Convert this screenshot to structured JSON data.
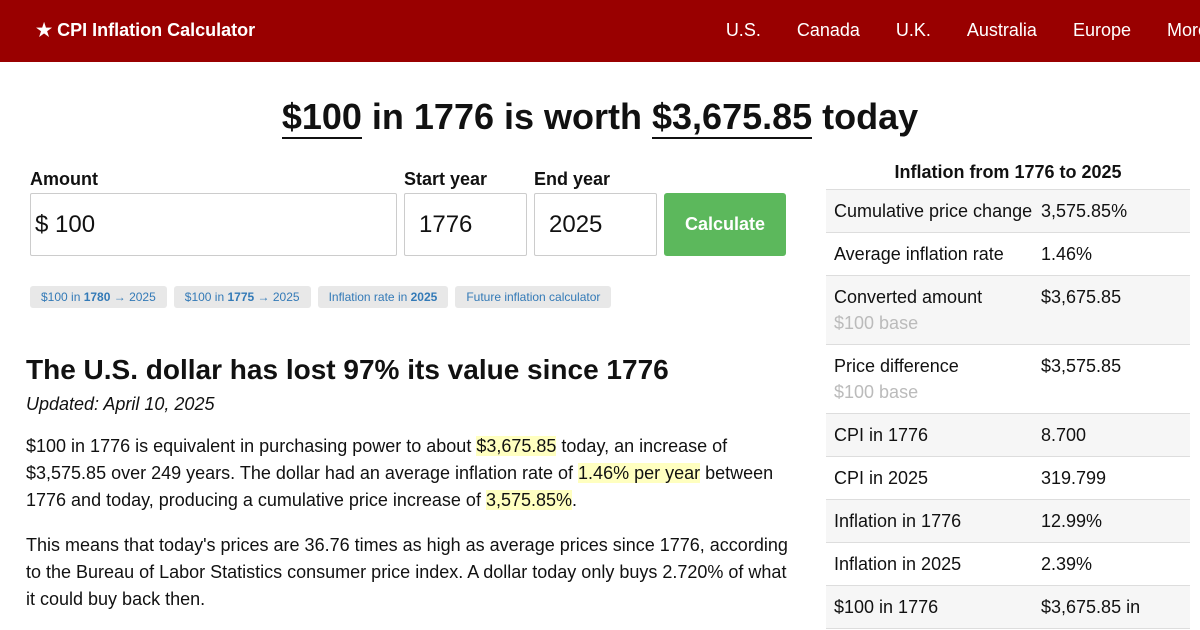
{
  "header": {
    "brand": "★ CPI Inflation Calculator",
    "nav": [
      "U.S.",
      "Canada",
      "U.K.",
      "Australia",
      "Europe",
      "More"
    ]
  },
  "headline": [
    "$100",
    " in 1776 is worth ",
    "$3,675.85",
    " today"
  ],
  "form": {
    "amount_label": "Amount",
    "currency": "$",
    "amount": "100",
    "start_label": "Start year",
    "start": "1776",
    "end_label": "End year",
    "end": "2025",
    "button": "Calculate"
  },
  "chips": [
    [
      "$100 in ",
      "1780",
      " → 2025"
    ],
    [
      "$100 in ",
      "1775",
      " → 2025"
    ],
    [
      "Inflation rate in ",
      "2025"
    ],
    [
      "Future inflation calculator"
    ]
  ],
  "article": {
    "heading": "The U.S. dollar has lost 97% its value since 1776",
    "updated": "Updated: April 10, 2025",
    "paragraphs": [
      [
        "$100 in 1776 is equivalent in purchasing power to about ",
        {
          "mark": "$3,675.85"
        },
        " today, an increase of $3,575.85 over 249 years. The dollar had an average inflation rate of ",
        {
          "mark": "1.46% per year"
        },
        " between 1776 and today, producing a cumulative price increase of ",
        {
          "mark": "3,575.85%"
        },
        "."
      ],
      [
        "This means that today's prices are 36.76 times as high as average prices since 1776, according to the Bureau of Labor Statistics consumer price index. A dollar today only buys 2.720% of what it could buy back then."
      ]
    ]
  },
  "sidebar": {
    "title": "Inflation from 1776 to 2025",
    "rows": [
      [
        "Cumulative price change",
        "3,575.85%"
      ],
      [
        "Average inflation rate",
        "1.46%"
      ],
      [
        "Converted amount",
        "$3,675.85",
        "$100 base"
      ],
      [
        "Price difference",
        "$3,575.85",
        "$100 base"
      ],
      [
        "CPI in 1776",
        "8.700"
      ],
      [
        "CPI in 2025",
        "319.799"
      ],
      [
        "Inflation in 1776",
        "12.99%"
      ],
      [
        "Inflation in 2025",
        "2.39%"
      ],
      [
        "$100 in 1776",
        "$3,675.85 in"
      ]
    ]
  }
}
